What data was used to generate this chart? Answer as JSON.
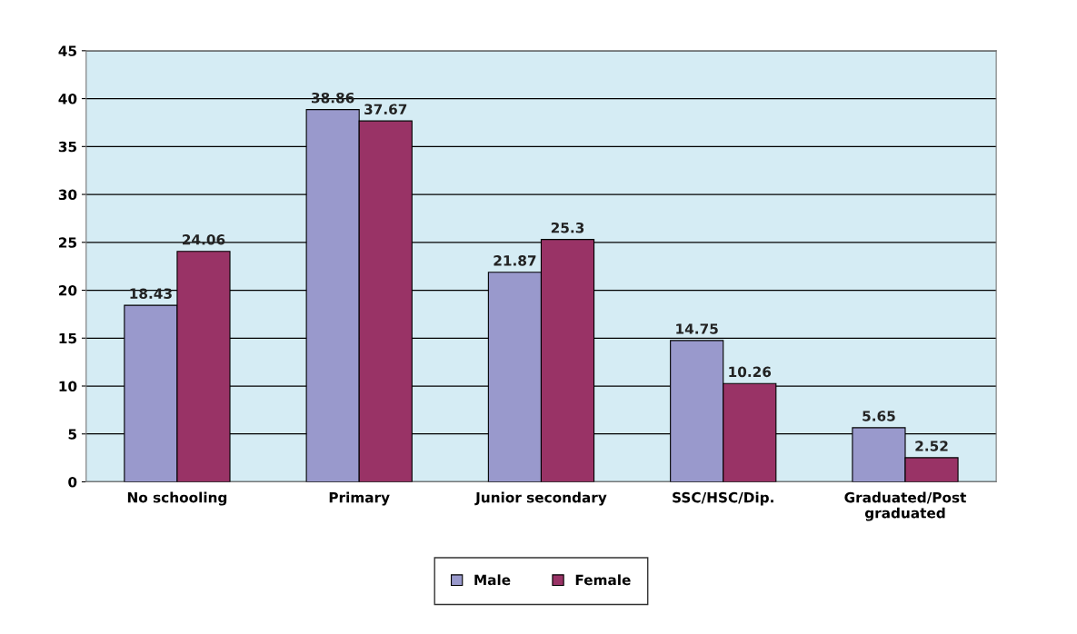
{
  "chart_data": {
    "type": "bar",
    "categories": [
      "No schooling",
      "Primary",
      "Junior secondary",
      "SSC/HSC/Dip.",
      "Graduated/Post\ngraduated"
    ],
    "series": [
      {
        "name": "Male",
        "color": "#9999cc",
        "values": [
          18.43,
          38.86,
          21.87,
          14.75,
          5.65
        ]
      },
      {
        "name": "Female",
        "color": "#993366",
        "values": [
          24.06,
          37.67,
          25.3,
          10.26,
          2.52
        ]
      }
    ],
    "ylim": [
      0,
      45
    ],
    "yticks": [
      0,
      5,
      10,
      15,
      20,
      25,
      30,
      35,
      40,
      45
    ],
    "grid": "y",
    "legend": "bottom",
    "data_labels": true
  }
}
